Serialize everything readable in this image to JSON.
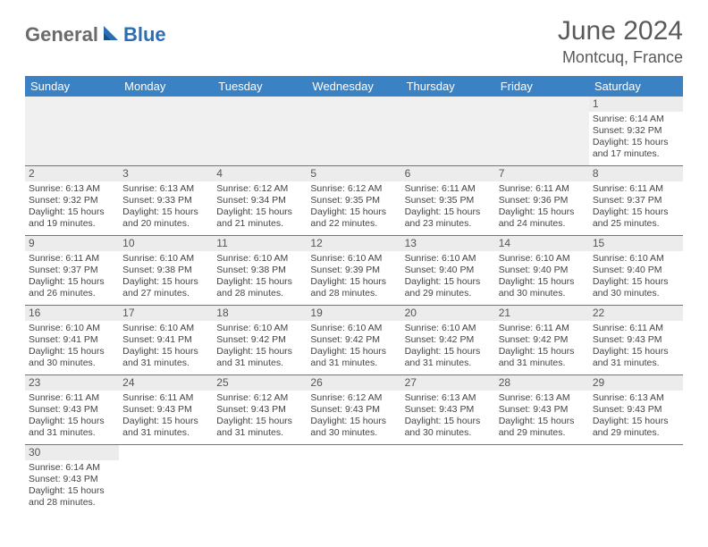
{
  "brand": {
    "text_gray": "General",
    "text_blue": "Blue"
  },
  "title": "June 2024",
  "location": "Montcuq, France",
  "colors": {
    "header_bg": "#3b82c4",
    "header_text": "#ffffff",
    "daynum_bg": "#ececec",
    "border": "#3b82c4",
    "logo_gray": "#6b6b6b",
    "logo_blue": "#2b6fb3"
  },
  "weekdays": [
    "Sunday",
    "Monday",
    "Tuesday",
    "Wednesday",
    "Thursday",
    "Friday",
    "Saturday"
  ],
  "weeks": [
    [
      null,
      null,
      null,
      null,
      null,
      null,
      {
        "n": "1",
        "sr": "6:14 AM",
        "ss": "9:32 PM",
        "dl": "15 hours and 17 minutes."
      }
    ],
    [
      {
        "n": "2",
        "sr": "6:13 AM",
        "ss": "9:32 PM",
        "dl": "15 hours and 19 minutes."
      },
      {
        "n": "3",
        "sr": "6:13 AM",
        "ss": "9:33 PM",
        "dl": "15 hours and 20 minutes."
      },
      {
        "n": "4",
        "sr": "6:12 AM",
        "ss": "9:34 PM",
        "dl": "15 hours and 21 minutes."
      },
      {
        "n": "5",
        "sr": "6:12 AM",
        "ss": "9:35 PM",
        "dl": "15 hours and 22 minutes."
      },
      {
        "n": "6",
        "sr": "6:11 AM",
        "ss": "9:35 PM",
        "dl": "15 hours and 23 minutes."
      },
      {
        "n": "7",
        "sr": "6:11 AM",
        "ss": "9:36 PM",
        "dl": "15 hours and 24 minutes."
      },
      {
        "n": "8",
        "sr": "6:11 AM",
        "ss": "9:37 PM",
        "dl": "15 hours and 25 minutes."
      }
    ],
    [
      {
        "n": "9",
        "sr": "6:11 AM",
        "ss": "9:37 PM",
        "dl": "15 hours and 26 minutes."
      },
      {
        "n": "10",
        "sr": "6:10 AM",
        "ss": "9:38 PM",
        "dl": "15 hours and 27 minutes."
      },
      {
        "n": "11",
        "sr": "6:10 AM",
        "ss": "9:38 PM",
        "dl": "15 hours and 28 minutes."
      },
      {
        "n": "12",
        "sr": "6:10 AM",
        "ss": "9:39 PM",
        "dl": "15 hours and 28 minutes."
      },
      {
        "n": "13",
        "sr": "6:10 AM",
        "ss": "9:40 PM",
        "dl": "15 hours and 29 minutes."
      },
      {
        "n": "14",
        "sr": "6:10 AM",
        "ss": "9:40 PM",
        "dl": "15 hours and 30 minutes."
      },
      {
        "n": "15",
        "sr": "6:10 AM",
        "ss": "9:40 PM",
        "dl": "15 hours and 30 minutes."
      }
    ],
    [
      {
        "n": "16",
        "sr": "6:10 AM",
        "ss": "9:41 PM",
        "dl": "15 hours and 30 minutes."
      },
      {
        "n": "17",
        "sr": "6:10 AM",
        "ss": "9:41 PM",
        "dl": "15 hours and 31 minutes."
      },
      {
        "n": "18",
        "sr": "6:10 AM",
        "ss": "9:42 PM",
        "dl": "15 hours and 31 minutes."
      },
      {
        "n": "19",
        "sr": "6:10 AM",
        "ss": "9:42 PM",
        "dl": "15 hours and 31 minutes."
      },
      {
        "n": "20",
        "sr": "6:10 AM",
        "ss": "9:42 PM",
        "dl": "15 hours and 31 minutes."
      },
      {
        "n": "21",
        "sr": "6:11 AM",
        "ss": "9:42 PM",
        "dl": "15 hours and 31 minutes."
      },
      {
        "n": "22",
        "sr": "6:11 AM",
        "ss": "9:43 PM",
        "dl": "15 hours and 31 minutes."
      }
    ],
    [
      {
        "n": "23",
        "sr": "6:11 AM",
        "ss": "9:43 PM",
        "dl": "15 hours and 31 minutes."
      },
      {
        "n": "24",
        "sr": "6:11 AM",
        "ss": "9:43 PM",
        "dl": "15 hours and 31 minutes."
      },
      {
        "n": "25",
        "sr": "6:12 AM",
        "ss": "9:43 PM",
        "dl": "15 hours and 31 minutes."
      },
      {
        "n": "26",
        "sr": "6:12 AM",
        "ss": "9:43 PM",
        "dl": "15 hours and 30 minutes."
      },
      {
        "n": "27",
        "sr": "6:13 AM",
        "ss": "9:43 PM",
        "dl": "15 hours and 30 minutes."
      },
      {
        "n": "28",
        "sr": "6:13 AM",
        "ss": "9:43 PM",
        "dl": "15 hours and 29 minutes."
      },
      {
        "n": "29",
        "sr": "6:13 AM",
        "ss": "9:43 PM",
        "dl": "15 hours and 29 minutes."
      }
    ],
    [
      {
        "n": "30",
        "sr": "6:14 AM",
        "ss": "9:43 PM",
        "dl": "15 hours and 28 minutes."
      },
      null,
      null,
      null,
      null,
      null,
      null
    ]
  ],
  "labels": {
    "sunrise": "Sunrise: ",
    "sunset": "Sunset: ",
    "daylight": "Daylight: "
  }
}
